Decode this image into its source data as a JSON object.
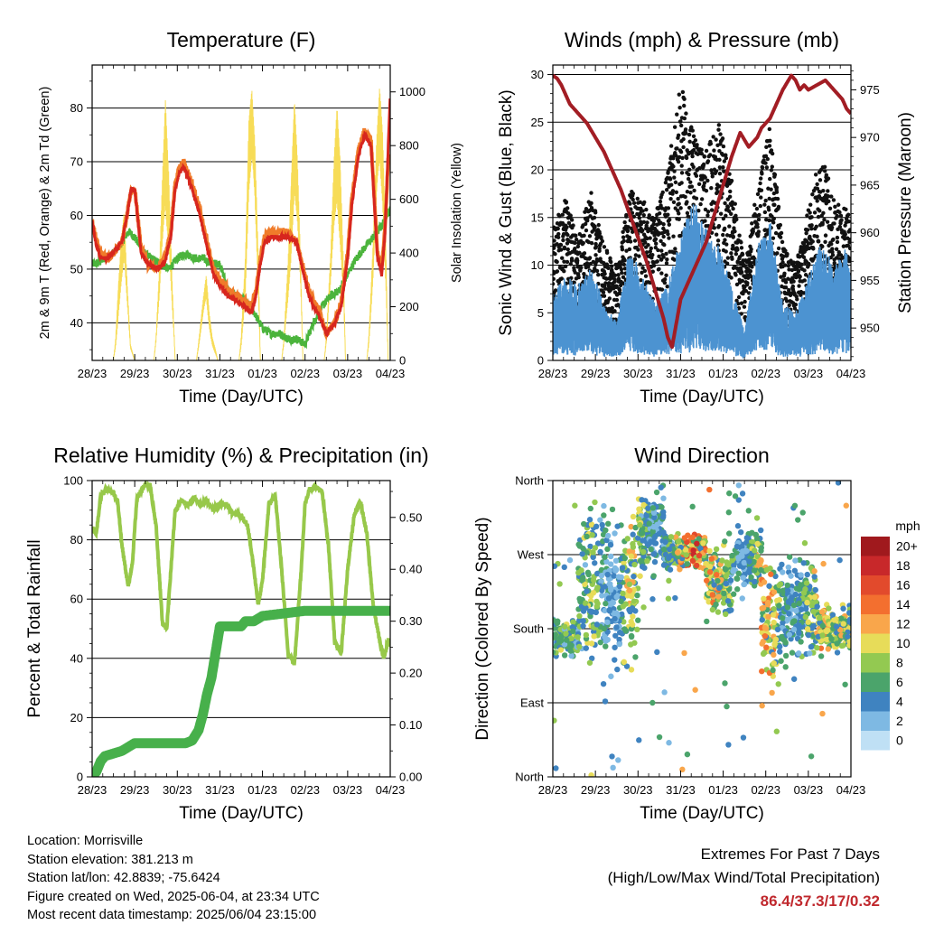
{
  "chart_data": [
    {
      "id": "temperature",
      "type": "line",
      "title": "Temperature (F)",
      "xlabel": "Time (Day/UTC)",
      "ylabel": "2m & 9m T (Red, Orange) & 2m Td (Green)",
      "y2label": "Solar Insolation (Yellow)",
      "x_ticks": [
        "28/23",
        "29/23",
        "30/23",
        "31/23",
        "01/23",
        "02/23",
        "03/23",
        "04/23"
      ],
      "xlim": [
        0,
        7
      ],
      "ylim": [
        33,
        88
      ],
      "y_ticks": [
        40,
        50,
        60,
        70,
        80
      ],
      "y2lim": [
        0,
        1100
      ],
      "y2_ticks": [
        0,
        200,
        400,
        600,
        800,
        1000
      ],
      "grid": "horizontal",
      "colors": {
        "t2m": "#d7261e",
        "t9m": "#f07b2a",
        "td2m": "#4bb43c",
        "solar": "#f7dc57"
      },
      "series": [
        {
          "key": "t9m",
          "x": [
            0,
            0.08,
            0.2,
            0.35,
            0.5,
            0.7,
            0.82,
            0.92,
            1.0,
            1.15,
            1.3,
            1.5,
            1.7,
            1.85,
            1.95,
            2.05,
            2.15,
            2.3,
            2.5,
            2.7,
            2.85,
            3.0,
            3.2,
            3.4,
            3.6,
            3.75,
            3.85,
            3.95,
            4.05,
            4.2,
            4.4,
            4.6,
            4.8,
            5.0,
            5.1,
            5.2,
            5.35,
            5.5,
            5.7,
            5.85,
            6.0,
            6.1,
            6.25,
            6.4,
            6.55,
            6.7,
            6.8,
            6.88,
            6.95,
            7.0
          ],
          "values": [
            59,
            56,
            53,
            52,
            53,
            55,
            60,
            65,
            65,
            54,
            51,
            50,
            52,
            57,
            66,
            69,
            70,
            67,
            62,
            55,
            50,
            48,
            46,
            45,
            44,
            43,
            46,
            52,
            56,
            57,
            57,
            57,
            55,
            49,
            46,
            44,
            42,
            38,
            40,
            44,
            53,
            63,
            72,
            76,
            74,
            53,
            50,
            58,
            70,
            71
          ]
        },
        {
          "key": "t2m",
          "x": [
            0,
            0.08,
            0.2,
            0.35,
            0.5,
            0.7,
            0.82,
            0.92,
            1.0,
            1.15,
            1.3,
            1.5,
            1.7,
            1.85,
            1.95,
            2.05,
            2.15,
            2.3,
            2.5,
            2.7,
            2.85,
            3.0,
            3.2,
            3.4,
            3.6,
            3.75,
            3.85,
            3.95,
            4.05,
            4.2,
            4.4,
            4.6,
            4.8,
            5.0,
            5.1,
            5.2,
            5.35,
            5.5,
            5.7,
            5.85,
            6.0,
            6.1,
            6.25,
            6.4,
            6.55,
            6.7,
            6.8,
            6.88,
            6.95,
            7.0
          ],
          "values": [
            59,
            55,
            52,
            52,
            53,
            55,
            60,
            65,
            65,
            53,
            51,
            50,
            51,
            56,
            65,
            68,
            69,
            66,
            61,
            54,
            49,
            47,
            45,
            44,
            43,
            42,
            45,
            51,
            55,
            56,
            56,
            56,
            55,
            48,
            45,
            43,
            41,
            38,
            40,
            43,
            52,
            62,
            71,
            75,
            73,
            52,
            49,
            57,
            72,
            83
          ]
        },
        {
          "key": "td2m",
          "x": [
            0,
            0.1,
            0.3,
            0.5,
            0.7,
            0.85,
            1.0,
            1.2,
            1.4,
            1.6,
            1.8,
            2.0,
            2.2,
            2.4,
            2.6,
            2.8,
            3.0,
            3.2,
            3.4,
            3.6,
            3.8,
            4.0,
            4.2,
            4.4,
            4.6,
            4.8,
            5.0,
            5.2,
            5.4,
            5.6,
            5.8,
            6.0,
            6.2,
            6.4,
            6.6,
            6.8,
            6.9,
            7.0
          ],
          "values": [
            51,
            51,
            52,
            53,
            55,
            57,
            56,
            53,
            52,
            51,
            50,
            52,
            53,
            52,
            52,
            51,
            51,
            46,
            45,
            44,
            42,
            39,
            38,
            38,
            37,
            37,
            36,
            40,
            43,
            45,
            46,
            49,
            52,
            54,
            56,
            58,
            60,
            61
          ]
        },
        {
          "key": "solar",
          "x": [
            0,
            0.5,
            0.55,
            0.62,
            0.68,
            0.75,
            0.82,
            0.9,
            1.0,
            1.45,
            1.5,
            1.58,
            1.65,
            1.72,
            1.8,
            1.88,
            1.95,
            2.45,
            2.5,
            2.6,
            2.68,
            2.75,
            2.82,
            2.9,
            2.95,
            3.45,
            3.5,
            3.6,
            3.68,
            3.75,
            3.82,
            3.9,
            3.95,
            4.45,
            4.5,
            4.6,
            4.68,
            4.75,
            4.82,
            4.9,
            4.95,
            5.45,
            5.5,
            5.6,
            5.68,
            5.75,
            5.82,
            5.9,
            5.95,
            6.45,
            6.5,
            6.6,
            6.68,
            6.75,
            6.82,
            6.9,
            6.95,
            7.0
          ],
          "values": [
            0,
            0,
            80,
            300,
            450,
            560,
            300,
            60,
            0,
            0,
            90,
            350,
            700,
            1020,
            720,
            300,
            0,
            0,
            70,
            220,
            320,
            180,
            90,
            40,
            0,
            0,
            90,
            400,
            900,
            1010,
            820,
            400,
            0,
            0,
            80,
            380,
            720,
            1000,
            760,
            350,
            0,
            0,
            90,
            400,
            760,
            980,
            800,
            380,
            0,
            0,
            100,
            450,
            820,
            1020,
            860,
            420,
            0,
            0
          ]
        }
      ]
    },
    {
      "id": "winds",
      "type": "scatter",
      "title": "Winds (mph) & Pressure (mb)",
      "xlabel": "Time (Day/UTC)",
      "ylabel": "Sonic Wind & Gust (Blue, Black)",
      "y2label": "Station Pressure (Maroon)",
      "x_ticks": [
        "28/23",
        "29/23",
        "30/23",
        "31/23",
        "01/23",
        "02/23",
        "03/23",
        "04/23"
      ],
      "xlim": [
        0,
        7
      ],
      "ylim": [
        0,
        31
      ],
      "y_ticks": [
        0,
        5,
        10,
        15,
        20,
        25,
        30
      ],
      "y2lim": [
        946.6,
        977.6
      ],
      "y2_ticks": [
        950,
        955,
        960,
        965,
        970,
        975
      ],
      "grid": "horizontal",
      "colors": {
        "wind": "#4c93d1",
        "gust": "#111111",
        "pressure": "#a21d24"
      },
      "wind_envelope": {
        "x": [
          0,
          0.3,
          0.6,
          0.9,
          1.2,
          1.5,
          1.8,
          2.1,
          2.4,
          2.7,
          3.0,
          3.3,
          3.6,
          3.9,
          4.2,
          4.5,
          4.8,
          5.1,
          5.4,
          5.7,
          6.0,
          6.3,
          6.6,
          6.9,
          7.0
        ],
        "values": [
          7,
          9,
          8,
          10,
          6,
          4,
          12,
          9,
          6,
          8,
          13,
          17,
          14,
          12,
          8,
          3,
          12,
          15,
          6,
          5,
          9,
          13,
          10,
          12,
          10
        ]
      },
      "gust_envelope": {
        "x": [
          0,
          0.3,
          0.6,
          0.9,
          1.2,
          1.5,
          1.8,
          2.1,
          2.4,
          2.7,
          3.0,
          3.3,
          3.6,
          3.9,
          4.2,
          4.5,
          4.8,
          5.1,
          5.4,
          5.7,
          6.0,
          6.3,
          6.6,
          6.9,
          7.0
        ],
        "values": [
          14,
          17,
          13,
          18,
          12,
          10,
          18,
          17,
          15,
          20,
          29,
          24,
          22,
          25,
          19,
          10,
          18,
          25,
          12,
          10,
          16,
          22,
          17,
          16,
          15
        ]
      },
      "pressure": {
        "x": [
          0,
          0.1,
          0.2,
          0.3,
          0.4,
          0.6,
          0.8,
          1.0,
          1.2,
          1.4,
          1.6,
          1.8,
          2.0,
          2.2,
          2.4,
          2.6,
          2.7,
          2.8,
          3.0,
          3.2,
          3.4,
          3.6,
          3.8,
          4.0,
          4.2,
          4.4,
          4.6,
          4.8,
          4.9,
          5.0,
          5.1,
          5.2,
          5.4,
          5.6,
          5.7,
          5.8,
          5.9,
          6.0,
          6.2,
          6.4,
          6.6,
          6.8,
          6.9,
          7.0
        ],
        "values": [
          976.5,
          976.2,
          975.5,
          974.5,
          973.5,
          972.5,
          971.5,
          970,
          968.5,
          966.5,
          964.5,
          962,
          959.5,
          957,
          954,
          951,
          949,
          948,
          953,
          955,
          957,
          959,
          962,
          965,
          968,
          970.5,
          969,
          970,
          971,
          971.5,
          972,
          973,
          975,
          976.5,
          976,
          975,
          975.5,
          975,
          975.5,
          976,
          975,
          974,
          973,
          972.5
        ]
      }
    },
    {
      "id": "humidity",
      "type": "line",
      "title": "Relative Humidity (%) & Precipitation (in)",
      "xlabel": "Time (Day/UTC)",
      "ylabel": "Percent & Total Rainfall",
      "x_ticks": [
        "28/23",
        "29/23",
        "30/23",
        "31/23",
        "01/23",
        "02/23",
        "03/23",
        "04/23"
      ],
      "xlim": [
        0,
        7
      ],
      "ylim": [
        0,
        100
      ],
      "y_ticks": [
        0,
        20,
        40,
        60,
        80,
        100
      ],
      "y2lim": [
        0,
        0.571
      ],
      "y2_ticks": [
        "0.00",
        "0.10",
        "0.20",
        "0.30",
        "0.40",
        "0.50"
      ],
      "grid": "horizontal",
      "colors": {
        "rh": "#97c84a",
        "rain": "#47b04b"
      },
      "series": [
        {
          "key": "rh",
          "x": [
            0,
            0.1,
            0.2,
            0.35,
            0.5,
            0.6,
            0.7,
            0.85,
            0.95,
            1.05,
            1.2,
            1.35,
            1.5,
            1.65,
            1.75,
            1.85,
            1.95,
            2.1,
            2.25,
            2.4,
            2.55,
            2.7,
            2.85,
            3.0,
            3.15,
            3.3,
            3.5,
            3.65,
            3.8,
            3.9,
            4.0,
            4.15,
            4.3,
            4.45,
            4.6,
            4.75,
            4.9,
            5.0,
            5.1,
            5.25,
            5.4,
            5.55,
            5.7,
            5.85,
            6.0,
            6.15,
            6.3,
            6.45,
            6.6,
            6.75,
            6.85,
            6.95,
            7.0
          ],
          "values": [
            84,
            82,
            95,
            97,
            96,
            93,
            78,
            64,
            73,
            94,
            98,
            99,
            85,
            52,
            50,
            70,
            90,
            93,
            92,
            94,
            92,
            93,
            90,
            92,
            92,
            89,
            88,
            85,
            70,
            58,
            66,
            92,
            95,
            70,
            42,
            38,
            68,
            92,
            97,
            98,
            96,
            78,
            45,
            42,
            70,
            88,
            93,
            82,
            58,
            46,
            40,
            46,
            45
          ]
        },
        {
          "key": "rain",
          "x": [
            0,
            0.1,
            0.2,
            0.3,
            0.5,
            0.7,
            0.8,
            0.9,
            1.0,
            2.0,
            2.2,
            2.35,
            2.5,
            2.6,
            2.7,
            2.8,
            2.9,
            3.0,
            3.5,
            3.6,
            3.8,
            4.0,
            4.5,
            5.0,
            6.0,
            7.0
          ],
          "values": [
            0,
            0.01,
            0.03,
            0.04,
            0.045,
            0.05,
            0.055,
            0.06,
            0.065,
            0.065,
            0.065,
            0.07,
            0.09,
            0.12,
            0.16,
            0.19,
            0.24,
            0.29,
            0.29,
            0.3,
            0.3,
            0.31,
            0.315,
            0.32,
            0.32,
            0.32
          ]
        }
      ]
    },
    {
      "id": "direction",
      "type": "scatter",
      "title": "Wind Direction",
      "xlabel": "Time (Day/UTC)",
      "ylabel": "Direction (Colored By Speed)",
      "x_ticks": [
        "28/23",
        "29/23",
        "30/23",
        "31/23",
        "01/23",
        "02/23",
        "03/23",
        "04/23"
      ],
      "xlim": [
        0,
        7
      ],
      "y_ticks": [
        "North",
        "East",
        "South",
        "West",
        "North"
      ],
      "ylim": [
        0,
        360
      ],
      "grid": "horizontal",
      "legend": {
        "title": "mph",
        "placement": "right",
        "labels": [
          "20+",
          "18",
          "16",
          "14",
          "12",
          "10",
          "8",
          "6",
          "4",
          "2",
          "0"
        ],
        "colors": [
          "#a0191d",
          "#c8282a",
          "#e24a2c",
          "#f36f2f",
          "#f9a64b",
          "#e7dc59",
          "#93c951",
          "#4ba46b",
          "#3f83c0",
          "#7eb9e3",
          "#bfe0f5"
        ]
      },
      "bands": [
        {
          "x0": 0.0,
          "x1": 0.6,
          "center": 170,
          "spread": 20
        },
        {
          "x0": 0.6,
          "x1": 1.2,
          "center": 230,
          "spread": 90
        },
        {
          "x0": 1.2,
          "x1": 2.0,
          "center": 220,
          "spread": 80
        },
        {
          "x0": 2.0,
          "x1": 2.6,
          "center": 300,
          "spread": 45
        },
        {
          "x0": 2.6,
          "x1": 3.6,
          "center": 275,
          "spread": 20
        },
        {
          "x0": 3.6,
          "x1": 4.2,
          "center": 240,
          "spread": 40
        },
        {
          "x0": 4.2,
          "x1": 4.9,
          "center": 265,
          "spread": 35
        },
        {
          "x0": 4.9,
          "x1": 5.5,
          "center": 190,
          "spread": 60
        },
        {
          "x0": 5.5,
          "x1": 6.2,
          "center": 210,
          "spread": 60
        },
        {
          "x0": 6.2,
          "x1": 7.0,
          "center": 180,
          "spread": 25
        }
      ]
    }
  ],
  "info": {
    "location": "Location: Morrisville",
    "elevation": "Station elevation: 381.213 m",
    "latlon": "Station lat/lon: 42.8839; -75.6424",
    "created": "Figure created on Wed, 2025-06-04, at 23:34 UTC",
    "timestamp": "Most recent data timestamp: 2025/06/04 23:15:00"
  },
  "extremes": {
    "title": "Extremes For Past 7 Days",
    "subtitle": "(High/Low/Max Wind/Total Precipitation)",
    "value": "86.4/37.3/17/0.32"
  }
}
